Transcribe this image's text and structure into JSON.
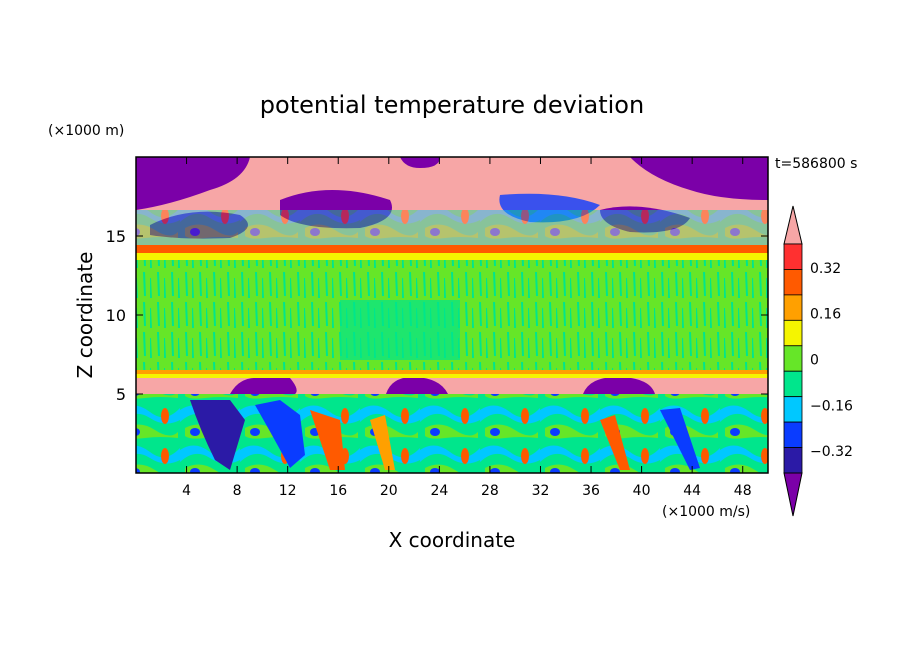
{
  "chart_data": {
    "type": "heatmap",
    "title": "potential temperature deviation",
    "xlabel": "X coordinate",
    "ylabel": "Z coordinate",
    "x_unit": "(×1000 m/s)",
    "y_unit": "(×1000 m)",
    "time_label": "t=586800 s",
    "xlim": [
      0,
      50
    ],
    "ylim": [
      0,
      20
    ],
    "x_ticks": [
      4,
      8,
      12,
      16,
      20,
      24,
      28,
      32,
      36,
      40,
      44,
      48
    ],
    "y_ticks": [
      5,
      10,
      15
    ],
    "colorbar": {
      "levels": [
        -0.4,
        -0.32,
        -0.24,
        -0.16,
        -0.08,
        0,
        0.08,
        0.16,
        0.24,
        0.32,
        0.4
      ],
      "tick_labels": [
        "-0.32",
        "-0.16",
        "0",
        "0.16",
        "0.32"
      ],
      "colors": [
        "#7b00a8",
        "#2b1aa6",
        "#0a3cff",
        "#00c8ff",
        "#00e68c",
        "#66e628",
        "#f5f500",
        "#ffa000",
        "#ff5a00",
        "#ff3030",
        "#f7a6a6"
      ],
      "extend": "both"
    },
    "bands": [
      {
        "z": [
          0,
          5
        ],
        "description": "turbulent layer, mixed colors"
      },
      {
        "z": [
          5,
          6
        ],
        "value": 0.4
      },
      {
        "z": [
          6,
          13.5
        ],
        "value": 0.0
      },
      {
        "z": [
          13.5,
          14.5
        ],
        "value": 0.3
      },
      {
        "z": [
          14.5,
          20
        ],
        "description": "mixed pink and purple blobs"
      }
    ]
  }
}
